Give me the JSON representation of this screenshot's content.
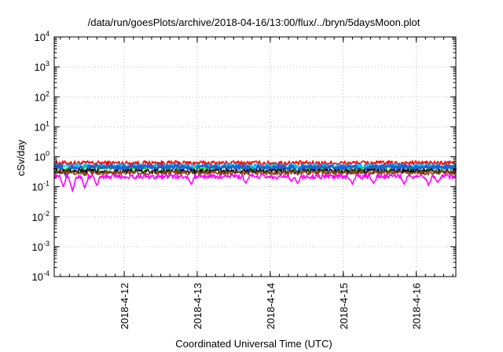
{
  "chart_data": {
    "type": "line",
    "title": "/data/run/goesPlots/archive/2018-04-16/13:00/flux/../bryn/5daysMoon.plot",
    "xlabel": "Coordinated Universal Time (UTC)",
    "ylabel": "cSv/day",
    "yscale": "log",
    "ylim": [
      0.0001,
      10000
    ],
    "y_ticks": [
      {
        "base": "10",
        "exp": "-4",
        "value": 0.0001
      },
      {
        "base": "10",
        "exp": "-3",
        "value": 0.001
      },
      {
        "base": "10",
        "exp": "-2",
        "value": 0.01
      },
      {
        "base": "10",
        "exp": "-1",
        "value": 0.1
      },
      {
        "base": "10",
        "exp": "0",
        "value": 1
      },
      {
        "base": "10",
        "exp": "1",
        "value": 10
      },
      {
        "base": "10",
        "exp": "2",
        "value": 100
      },
      {
        "base": "10",
        "exp": "3",
        "value": 1000
      },
      {
        "base": "10",
        "exp": "4",
        "value": 10000
      }
    ],
    "xlim": [
      "2018-04-11 01:00",
      "2018-04-16 13:00"
    ],
    "x_ticks": [
      "2018-4-12",
      "2018-4-13",
      "2018-4-14",
      "2018-4-15",
      "2018-4-16"
    ],
    "grid": true,
    "series": [
      {
        "color": "#ff0000",
        "level": 0.62,
        "dips": []
      },
      {
        "color": "#00cc00",
        "level": 0.44,
        "dips": []
      },
      {
        "color": "#00bfff",
        "level": 0.5,
        "dips": []
      },
      {
        "color": "#1f5fd8",
        "level": 0.45,
        "dips": [
          [
            "2018-04-11 05:00",
            0.2
          ],
          [
            "2018-04-11 11:00",
            0.24
          ],
          [
            "2018-04-12 23:00",
            0.3
          ],
          [
            "2018-04-13 18:00",
            0.3
          ],
          [
            "2018-04-14 09:00",
            0.3
          ],
          [
            "2018-04-15 06:00",
            0.28
          ]
        ]
      },
      {
        "color": "#000000",
        "level": 0.33,
        "dips": []
      },
      {
        "color": "#8b4513",
        "level": 0.3,
        "dips": []
      },
      {
        "color": "#ff00ff",
        "level": 0.22,
        "dips": [
          [
            "2018-04-11 04:00",
            0.1
          ],
          [
            "2018-04-11 07:00",
            0.07
          ],
          [
            "2018-04-11 11:00",
            0.09
          ],
          [
            "2018-04-11 15:00",
            0.11
          ],
          [
            "2018-04-12 22:00",
            0.12
          ],
          [
            "2018-04-13 16:00",
            0.13
          ],
          [
            "2018-04-14 07:00",
            0.15
          ],
          [
            "2018-04-14 09:00",
            0.13
          ],
          [
            "2018-04-15 03:00",
            0.12
          ],
          [
            "2018-04-15 10:00",
            0.13
          ],
          [
            "2018-04-15 20:00",
            0.12
          ],
          [
            "2018-04-16 04:00",
            0.11
          ],
          [
            "2018-04-16 07:00",
            0.14
          ]
        ]
      }
    ]
  }
}
